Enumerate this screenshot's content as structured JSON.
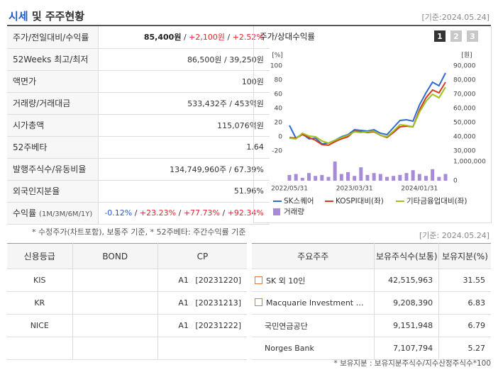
{
  "header": {
    "title_highlight": "시세",
    "title_rest": " 및 주주현황",
    "date": "[기준:2024.05.24]"
  },
  "summary": {
    "separator": " / ",
    "rows": [
      {
        "label": "주가/전일대비/수익률",
        "values": [
          "85,400원",
          "+2,100원",
          "+2.52%"
        ],
        "colors": [
          "#222222",
          "#e0262f",
          "#e0262f"
        ],
        "bold_first": true
      },
      {
        "label": "52Weeks 최고/최저",
        "values": [
          "86,500원",
          "39,250원"
        ]
      },
      {
        "label": "액면가",
        "values": [
          "100원"
        ]
      },
      {
        "label": "거래량/거래대금",
        "values": [
          "533,432주",
          "453억원"
        ]
      },
      {
        "label": "시가총액",
        "values": [
          "115,076억원"
        ]
      },
      {
        "label": "52주베타",
        "values": [
          "1.64"
        ]
      },
      {
        "label": "발행주식수/유동비율",
        "values": [
          "134,749,960주",
          "67.39%"
        ]
      },
      {
        "label": "외국인지분율",
        "values": [
          "51.96%"
        ]
      },
      {
        "label": "수익률",
        "sublabel": "(1M/3M/6M/1Y)",
        "values": [
          "-0.12%",
          "+23.23%",
          "+77.73%",
          "+92.34%"
        ],
        "colors": [
          "#2159c9",
          "#e0262f",
          "#e0262f",
          "#e0262f"
        ]
      }
    ],
    "note": "* 수정주가(차트포함), 보통주 기준, * 52주베타: 주간수익률 기준"
  },
  "chart_data": {
    "type": "line",
    "title": "주가/상대수익률",
    "buttons": [
      "1",
      "2",
      "3"
    ],
    "categories": [
      "2022/05/31",
      null,
      null,
      null,
      null,
      null,
      null,
      null,
      null,
      null,
      "2023/03/31",
      null,
      null,
      null,
      null,
      null,
      null,
      null,
      null,
      null,
      "2024/01/31",
      null,
      null,
      null,
      null
    ],
    "ylabel": "[%]",
    "ylim": [
      -20,
      100
    ],
    "yticks": [
      -20,
      0,
      20,
      40,
      60,
      80,
      100
    ],
    "y2label": "[원]",
    "y2lim": [
      30000,
      90000
    ],
    "y2ticks": [
      {
        "value": 30000,
        "label": "30,000"
      },
      {
        "value": 40000,
        "label": "40,000"
      },
      {
        "value": 50000,
        "label": "50,000"
      },
      {
        "value": 60000,
        "label": "60,000"
      },
      {
        "value": 70000,
        "label": "70,000"
      },
      {
        "value": 80000,
        "label": "80,000"
      },
      {
        "value": 90000,
        "label": "90,000"
      }
    ],
    "y3lim": [
      0,
      1000000
    ],
    "y3ticks": [
      0,
      {
        "value": 1000000,
        "label": "1,000,000"
      }
    ],
    "series": [
      {
        "name": "SK스퀘어",
        "color": "#2e6bd1",
        "values": [
          16,
          -2,
          4,
          -3,
          -2,
          -10,
          -9,
          -5,
          0,
          3,
          10,
          9,
          8,
          10,
          5,
          3,
          13,
          23,
          24,
          22,
          45,
          62,
          77,
          72,
          90
        ]
      },
      {
        "name": "KOSPI대비(좌)",
        "color": "#d63a1e",
        "values": [
          -1,
          -2,
          3,
          -1,
          -5,
          -11,
          -12,
          -7,
          -3,
          0,
          8,
          7,
          6,
          7,
          2,
          -1,
          6,
          14,
          15,
          14,
          38,
          55,
          66,
          62,
          77
        ]
      },
      {
        "name": "기타금융업대비(좌)",
        "color": "#9cc21a",
        "values": [
          -2,
          -3,
          5,
          1,
          0,
          -6,
          -9,
          -5,
          -1,
          2,
          7,
          6,
          7,
          8,
          2,
          0,
          8,
          17,
          16,
          14,
          35,
          50,
          60,
          55,
          70
        ]
      },
      {
        "name": "거래량",
        "color": "#a78bd9",
        "type": "bar",
        "axis": "y3",
        "values": [
          300000,
          350000,
          150000,
          400000,
          250000,
          300000,
          200000,
          1000000,
          350000,
          450000,
          250000,
          700000,
          300000,
          400000,
          350000,
          200000,
          250000,
          300000,
          400000,
          550000,
          350000,
          250000,
          600000,
          200000,
          350000
        ]
      }
    ]
  },
  "credit": {
    "headers": [
      "신용등급",
      "BOND",
      "CP"
    ],
    "rows": [
      {
        "agency": "KIS",
        "cp": "A1 [20231220]"
      },
      {
        "agency": "KR",
        "cp": "A1 [20231213]"
      },
      {
        "agency": "NICE",
        "cp": "A1 [20231222]"
      }
    ]
  },
  "holders": {
    "date": "[기준: 2024.05.24]",
    "headers": [
      "주요주주",
      "보유주식수(보통)",
      "보유지분(%)"
    ],
    "rows": [
      {
        "name": "SK 외 10인",
        "shares": "42,515,963",
        "pct": "31.55",
        "icon": true
      },
      {
        "name": "Macquarie Investment …",
        "shares": "9,208,390",
        "pct": "6.83",
        "icon": true
      },
      {
        "name": "국민연금공단",
        "shares": "9,151,948",
        "pct": "6.79"
      },
      {
        "name": "Norges Bank",
        "shares": "7,107,794",
        "pct": "5.27"
      }
    ],
    "note": "* 보유지분 : 보유지분주식수/지수산정주식수*100"
  }
}
